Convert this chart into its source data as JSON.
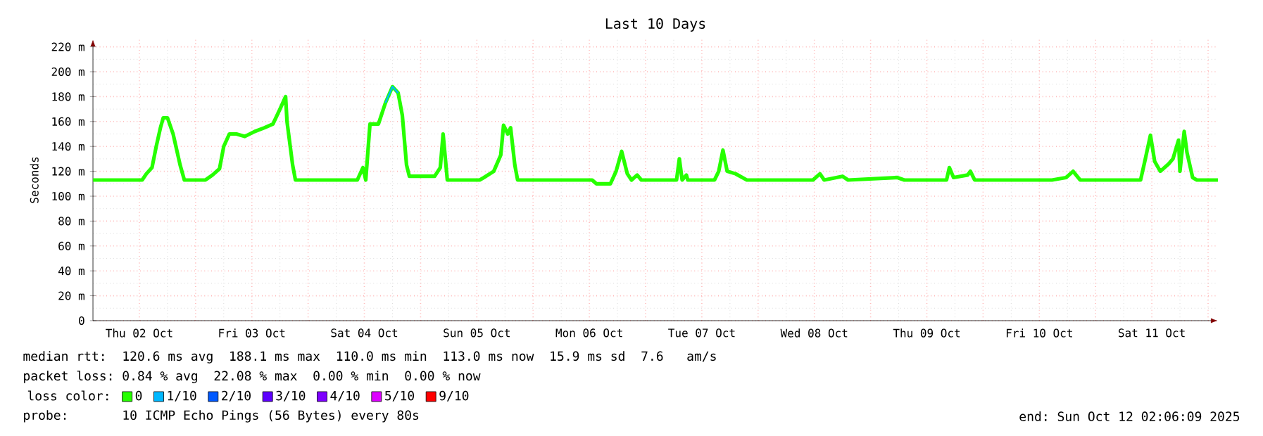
{
  "chart_data": {
    "type": "line",
    "title": "Last 10 Days",
    "ylabel": "Seconds",
    "legend_title": "loss color:",
    "legend": "bottom",
    "grid": true,
    "xlim": [
      "2025-10-02T02:06",
      "2025-10-12T02:06"
    ],
    "xticks": [
      {
        "value": "2025-10-02T12:00",
        "label": "Thu 02 Oct"
      },
      {
        "value": "2025-10-03T00:00",
        "label": null
      },
      {
        "value": "2025-10-03T12:00",
        "label": "Fri 03 Oct"
      },
      {
        "value": "2025-10-04T00:00",
        "label": null
      },
      {
        "value": "2025-10-04T12:00",
        "label": "Sat 04 Oct"
      },
      {
        "value": "2025-10-05T00:00",
        "label": null
      },
      {
        "value": "2025-10-05T12:00",
        "label": "Sun 05 Oct"
      },
      {
        "value": "2025-10-06T00:00",
        "label": null
      },
      {
        "value": "2025-10-06T12:00",
        "label": "Mon 06 Oct"
      },
      {
        "value": "2025-10-07T00:00",
        "label": null
      },
      {
        "value": "2025-10-07T12:00",
        "label": "Tue 07 Oct"
      },
      {
        "value": "2025-10-08T00:00",
        "label": null
      },
      {
        "value": "2025-10-08T12:00",
        "label": "Wed 08 Oct"
      },
      {
        "value": "2025-10-09T00:00",
        "label": null
      },
      {
        "value": "2025-10-09T12:00",
        "label": "Thu 09 Oct"
      },
      {
        "value": "2025-10-10T00:00",
        "label": null
      },
      {
        "value": "2025-10-10T12:00",
        "label": "Fri 10 Oct"
      },
      {
        "value": "2025-10-11T00:00",
        "label": null
      },
      {
        "value": "2025-10-11T12:00",
        "label": "Sat 11 Oct"
      },
      {
        "value": "2025-10-12T00:00",
        "label": null
      }
    ],
    "ylim": [
      0,
      226
    ],
    "yticks": [
      0,
      {
        "value": 20,
        "label": "20 m"
      },
      {
        "value": 40,
        "label": "40 m"
      },
      {
        "value": 60,
        "label": "60 m"
      },
      {
        "value": 80,
        "label": "80 m"
      },
      {
        "value": 100,
        "label": "100 m"
      },
      {
        "value": 120,
        "label": "120 m"
      },
      {
        "value": 140,
        "label": "140 m"
      },
      {
        "value": 160,
        "label": "160 m"
      },
      {
        "value": 180,
        "label": "180 m"
      },
      {
        "value": 200,
        "label": "200 m"
      },
      {
        "value": 220,
        "label": "220 m"
      }
    ],
    "series": [
      {
        "name": "0",
        "color": "#26ff00",
        "x": [
          "2025-10-02T02:06",
          "2025-10-02T12:36",
          "2025-10-02T13:30",
          "2025-10-02T14:42",
          "2025-10-02T15:36",
          "2025-10-02T16:30",
          "2025-10-02T17:06",
          "2025-10-02T18:00",
          "2025-10-02T19:12",
          "2025-10-02T19:30",
          "2025-10-02T20:42",
          "2025-10-02T21:36",
          "2025-10-03T02:06",
          "2025-10-03T03:36",
          "2025-10-03T05:06",
          "2025-10-03T06:00",
          "2025-10-03T07:12",
          "2025-10-03T08:42",
          "2025-10-03T10:30",
          "2025-10-03T12:36",
          "2025-10-03T14:42",
          "2025-10-03T16:30",
          "2025-10-03T18:00",
          "2025-10-03T19:12",
          "2025-10-03T19:30",
          "2025-10-03T20:42",
          "2025-10-03T21:18",
          "2025-10-04T10:30",
          "2025-10-04T11:42",
          "2025-10-04T12:18",
          "2025-10-04T13:12",
          "2025-10-04T15:00",
          "2025-10-04T16:30",
          "2025-10-04T18:00",
          "2025-10-04T19:12",
          "2025-10-04T20:06",
          "2025-10-04T21:00",
          "2025-10-04T21:36",
          "2025-10-05T03:00",
          "2025-10-05T04:12",
          "2025-10-05T04:48",
          "2025-10-05T05:42",
          "2025-10-05T12:36",
          "2025-10-05T13:30",
          "2025-10-05T15:36",
          "2025-10-05T17:06",
          "2025-10-05T17:42",
          "2025-10-05T18:36",
          "2025-10-05T19:12",
          "2025-10-05T20:06",
          "2025-10-05T20:42",
          "2025-10-06T12:36",
          "2025-10-06T13:30",
          "2025-10-06T16:30",
          "2025-10-06T17:42",
          "2025-10-06T18:54",
          "2025-10-06T20:06",
          "2025-10-06T21:00",
          "2025-10-06T22:12",
          "2025-10-06T23:06",
          "2025-10-07T06:36",
          "2025-10-07T07:12",
          "2025-10-07T07:48",
          "2025-10-07T08:42",
          "2025-10-07T09:00",
          "2025-10-07T14:42",
          "2025-10-07T15:36",
          "2025-10-07T16:30",
          "2025-10-07T17:24",
          "2025-10-07T19:12",
          "2025-10-07T21:36",
          "2025-10-08T11:42",
          "2025-10-08T13:12",
          "2025-10-08T14:06",
          "2025-10-08T18:00",
          "2025-10-08T19:12",
          "2025-10-09T05:42",
          "2025-10-09T07:12",
          "2025-10-09T16:12",
          "2025-10-09T16:48",
          "2025-10-09T17:42",
          "2025-10-09T20:42",
          "2025-10-09T21:18",
          "2025-10-09T22:12",
          "2025-10-10T14:42",
          "2025-10-10T17:42",
          "2025-10-10T19:12",
          "2025-10-10T20:42",
          "2025-10-11T09:36",
          "2025-10-11T10:30",
          "2025-10-11T11:42",
          "2025-10-11T12:36",
          "2025-10-11T13:48",
          "2025-10-11T15:36",
          "2025-10-11T16:30",
          "2025-10-11T17:42",
          "2025-10-11T18:00",
          "2025-10-11T18:54",
          "2025-10-11T19:30",
          "2025-10-11T20:42",
          "2025-10-11T21:36",
          "2025-10-12T02:06"
        ],
        "values": [
          113,
          113,
          118,
          123,
          140,
          155,
          163,
          163,
          150,
          145,
          125,
          113,
          113,
          117,
          122,
          140,
          150,
          150,
          148,
          152,
          155,
          158,
          170,
          180,
          160,
          125,
          113,
          113,
          123,
          113,
          158,
          158,
          175,
          188,
          183,
          165,
          125,
          116,
          116,
          123,
          150,
          113,
          113,
          115,
          120,
          133,
          157,
          150,
          155,
          125,
          113,
          113,
          110,
          110,
          120,
          136,
          118,
          113,
          117,
          113,
          113,
          130,
          113,
          117,
          113,
          113,
          120,
          137,
          120,
          118,
          113,
          113,
          118,
          113,
          116,
          113,
          115,
          113,
          113,
          123,
          115,
          117,
          120,
          113,
          113,
          115,
          120,
          113,
          113,
          128,
          149,
          128,
          120,
          126,
          130,
          145,
          120,
          152,
          135,
          115,
          113,
          113
        ]
      },
      {
        "name": "1/10",
        "color": "#00b8ff",
        "x": [
          "2025-10-04T16:30",
          "2025-10-04T18:00",
          "2025-10-04T19:12"
        ],
        "values": [
          175,
          188,
          183
        ]
      },
      {
        "name": "2/10",
        "color": "#0059ff"
      },
      {
        "name": "3/10",
        "color": "#5e00ff"
      },
      {
        "name": "4/10",
        "color": "#7e00ff"
      },
      {
        "name": "5/10",
        "color": "#dd00ff"
      },
      {
        "name": "9/10",
        "color": "#ff0000"
      }
    ],
    "annotations": [
      "median rtt:  120.6 ms avg  188.1 ms max  110.0 ms min  113.0 ms now  15.9 ms sd  7.6   am/s",
      "packet loss: 0.84 % avg  22.08 % max  0.00 % min  0.00 % now",
      "probe:       10 ICMP Echo Pings (56 Bytes) every 80s",
      "end: Sun Oct 12 02:06:09 2025"
    ]
  }
}
